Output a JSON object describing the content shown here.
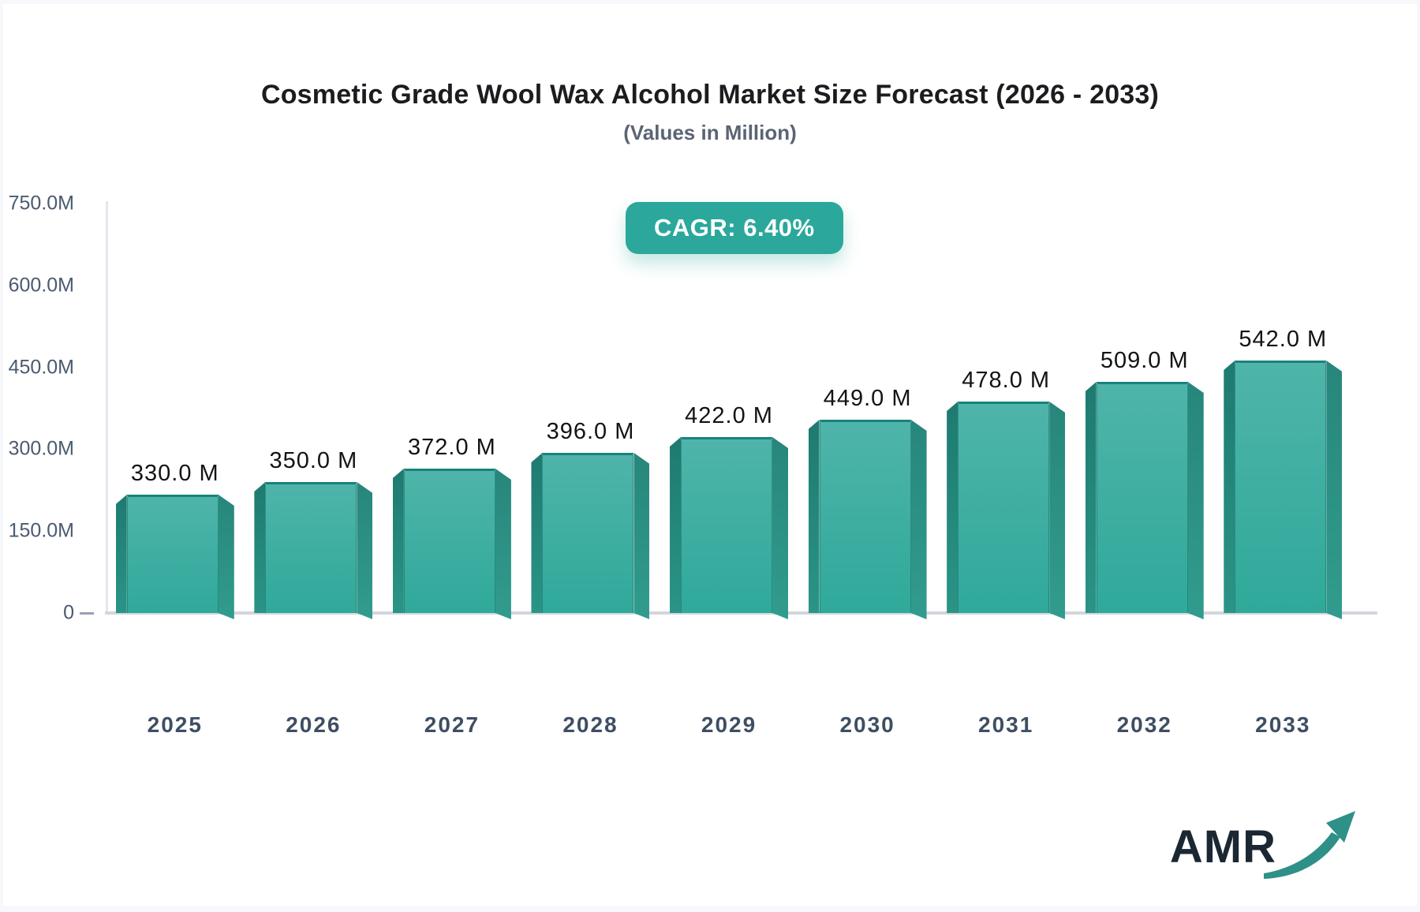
{
  "page": {
    "outer_background": "#f7f8fc",
    "card_background": "#ffffff"
  },
  "header": {
    "title": "Cosmetic Grade Wool Wax Alcohol Market Size Forecast (2026 - 2033)",
    "subtitle": "(Values in Million)"
  },
  "cagr_badge": {
    "label": "CAGR: 6.40%",
    "background": "#2BA89B",
    "text_color": "#FFFFFF"
  },
  "chart_data": {
    "type": "bar",
    "title": "Cosmetic Grade Wool Wax Alcohol Market Size Forecast (2026 - 2033)",
    "subtitle": "(Values in Million)",
    "unit": "Million (M)",
    "cagr": "6.40%",
    "categories": [
      "2025",
      "2026",
      "2027",
      "2028",
      "2029",
      "2030",
      "2031",
      "2032",
      "2033"
    ],
    "values": [
      330,
      350,
      372,
      396,
      422,
      449,
      478,
      509,
      542
    ],
    "value_labels": [
      "330.0 M",
      "350.0 M",
      "372.0 M",
      "396.0 M",
      "422.0 M",
      "449.0 M",
      "478.0 M",
      "509.0 M",
      "542.0 M"
    ],
    "y_axis": {
      "max": 750,
      "ticks": [
        {
          "label": "750.0M",
          "value": 750
        },
        {
          "label": "600.0M",
          "value": 600
        },
        {
          "label": "450.0M",
          "value": 450
        },
        {
          "label": "300.0M",
          "value": 300
        },
        {
          "label": "150.0M",
          "value": 150
        },
        {
          "label": "0",
          "value": 0
        }
      ]
    },
    "grid": "off",
    "legend": "none",
    "bar_colors": {
      "face_top": "#4FB4AA",
      "face_bottom": "#2FA99A",
      "face_border": "#17837A",
      "left_side_top": "#1E7A70",
      "left_side_bottom": "#2A9487",
      "right_side_top": "#27867B",
      "right_side_bottom": "#319C8E"
    },
    "axis_colors": {
      "axis_line": "#D3D6DE",
      "tick_text": "#4B5A70",
      "category_text": "#3E4E63",
      "value_text": "#131313"
    }
  },
  "logo": {
    "text": "AMR",
    "text_color": "#1B2733",
    "arrow_color": "#2E9086"
  }
}
